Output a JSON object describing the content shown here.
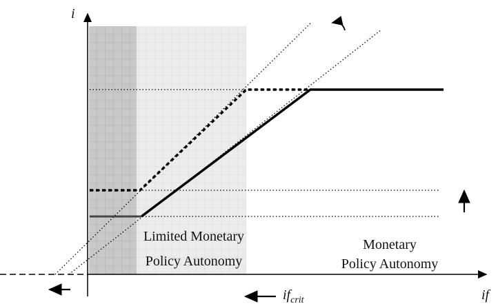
{
  "axes": {
    "y_label": "i",
    "x_label": "if",
    "critical_label": {
      "main": "if",
      "sub": "crit"
    }
  },
  "regions": [
    {
      "lines": [
        "Limited Monetary",
        "Policy Autonomy"
      ]
    },
    {
      "lines": [
        "Monetary",
        "Policy Autonomy"
      ]
    }
  ]
}
